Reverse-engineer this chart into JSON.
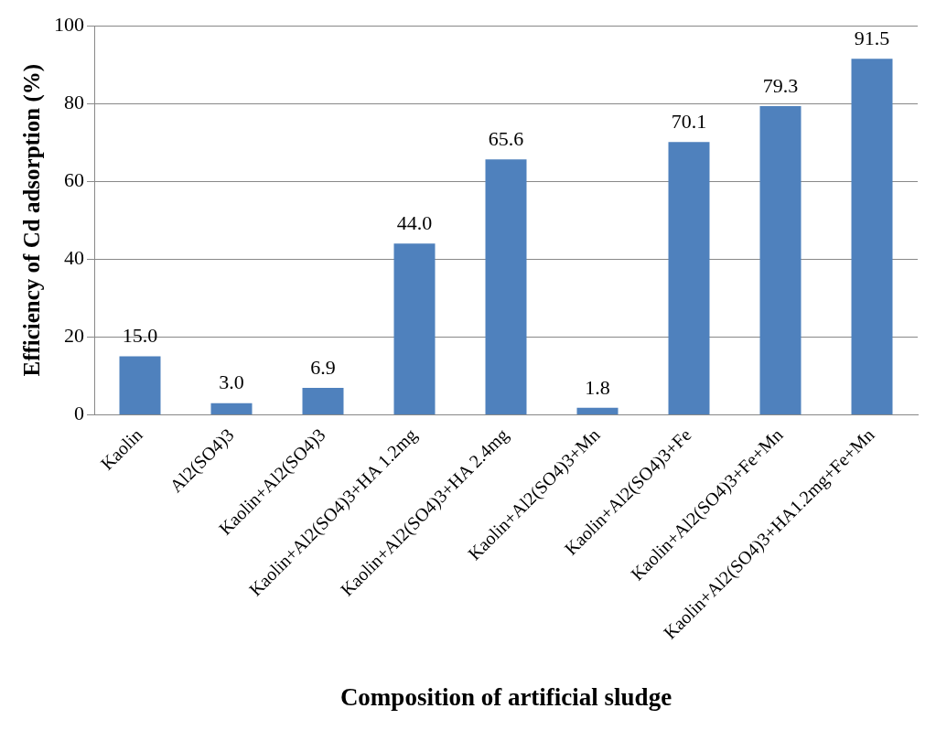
{
  "chart_data": {
    "type": "bar",
    "xlabel": "Composition of artificial sludge",
    "ylabel": "Efficiency of Cd adsorption (%)",
    "categories": [
      "Kaolin",
      "Al2(SO4)3",
      "Kaolin+Al2(SO4)3",
      "Kaolin+Al2(SO4)3+HA 1.2mg",
      "Kaolin+Al2(SO4)3+HA 2.4mg",
      "Kaolin+Al2(SO4)3+Mn",
      "Kaolin+Al2(SO4)3+Fe",
      "Kaolin+Al2(SO4)3+Fe+Mn",
      "Kaolin+Al2(SO4)3+HA1.2mg+Fe+Mn"
    ],
    "values": [
      15.0,
      3.0,
      6.9,
      44.0,
      65.6,
      1.8,
      70.1,
      79.3,
      91.5
    ],
    "value_labels": [
      "15.0",
      "3.0",
      "6.9",
      "44.0",
      "65.6",
      "1.8",
      "70.1",
      "79.3",
      "91.5"
    ],
    "color": "#4f81bd",
    "ylim": [
      0,
      100
    ],
    "yticks": [
      0,
      20,
      40,
      60,
      80,
      100
    ],
    "grid": "y",
    "legend": false
  }
}
